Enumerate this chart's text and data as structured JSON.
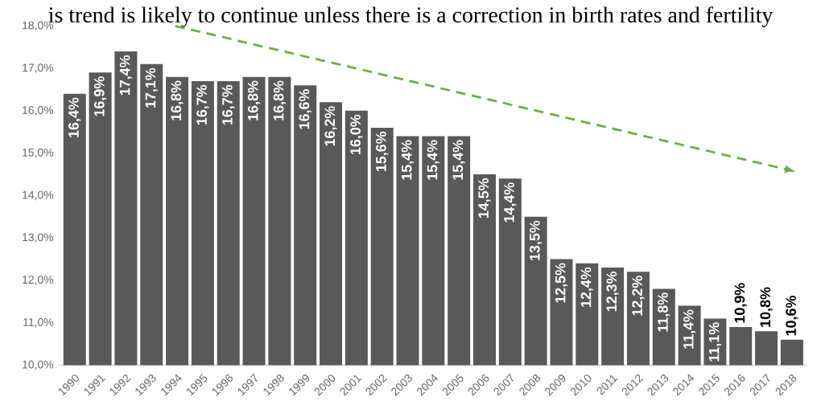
{
  "chart_data": {
    "type": "bar",
    "categories": [
      "1990",
      "1991",
      "1992",
      "1993",
      "1994",
      "1995",
      "1996",
      "1997",
      "1998",
      "1999",
      "2000",
      "2001",
      "2002",
      "2003",
      "2004",
      "2005",
      "2006",
      "2007",
      "2008",
      "2009",
      "2010",
      "2011",
      "2012",
      "2013",
      "2014",
      "2015",
      "2016",
      "2017",
      "2018"
    ],
    "values": [
      16.4,
      16.9,
      17.4,
      17.1,
      16.8,
      16.7,
      16.7,
      16.8,
      16.8,
      16.6,
      16.2,
      16.0,
      15.6,
      15.4,
      15.4,
      15.4,
      14.5,
      14.4,
      13.5,
      12.5,
      12.4,
      12.3,
      12.2,
      11.8,
      11.4,
      11.1,
      10.9,
      10.8,
      10.6
    ],
    "value_labels": [
      "16,4%",
      "16,9%",
      "17,4%",
      "17,1%",
      "16,8%",
      "16,7%",
      "16,7%",
      "16,8%",
      "16,8%",
      "16,6%",
      "16,2%",
      "16,0%",
      "15,6%",
      "15,4%",
      "15,4%",
      "15,4%",
      "14,5%",
      "14,4%",
      "13,5%",
      "12,5%",
      "12,4%",
      "12,3%",
      "12,2%",
      "11,8%",
      "11,4%",
      "11,1%",
      "10,9%",
      "10,8%",
      "10,6%"
    ],
    "color": "#595959",
    "ylim": [
      10,
      18
    ],
    "yticks": [
      {
        "value": 10,
        "label": "10,0%"
      },
      {
        "value": 11,
        "label": "11,0%"
      },
      {
        "value": 12,
        "label": "12,0%"
      },
      {
        "value": 13,
        "label": "13,0%"
      },
      {
        "value": 14,
        "label": "14,0%"
      },
      {
        "value": 15,
        "label": "15,0%"
      },
      {
        "value": 16,
        "label": "16,0%"
      },
      {
        "value": 17,
        "label": "17,0%"
      },
      {
        "value": 18,
        "label": "18,0%"
      }
    ],
    "annotations": [
      "is trend is likely to continue unless there is a correction in birth rates and fertility"
    ],
    "grid": false
  }
}
